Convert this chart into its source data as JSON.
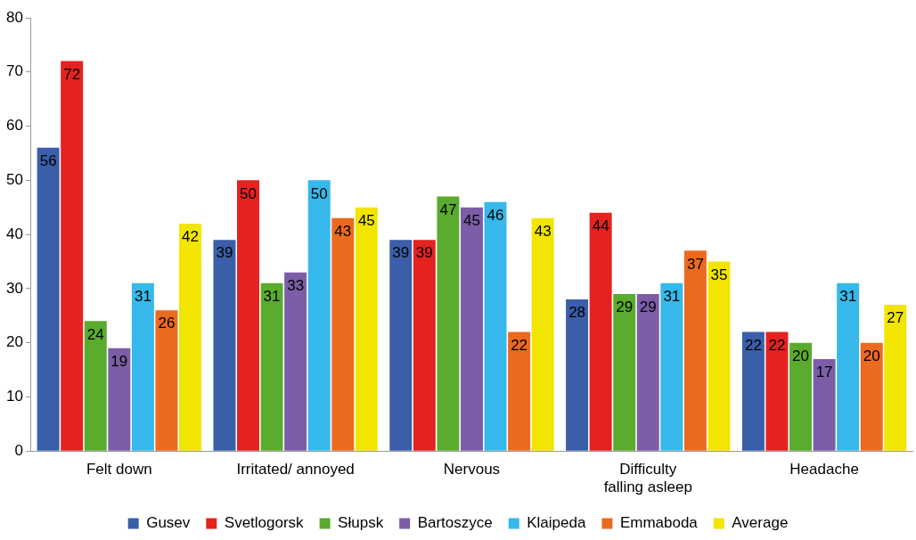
{
  "chart_data": {
    "type": "bar",
    "categories": [
      "Felt down",
      "Irritated/ annoyed",
      "Nervous",
      "Difficulty falling asleep",
      "Headache"
    ],
    "series": [
      {
        "name": "Gusev",
        "color": "#3a5ea8",
        "values": [
          56,
          39,
          39,
          28,
          22
        ]
      },
      {
        "name": "Svetlogorsk",
        "color": "#e4221f",
        "values": [
          72,
          50,
          39,
          44,
          22
        ]
      },
      {
        "name": "Słupsk",
        "color": "#5aab2e",
        "values": [
          24,
          31,
          47,
          29,
          20
        ]
      },
      {
        "name": "Bartoszyce",
        "color": "#7b5ea7",
        "values": [
          19,
          33,
          45,
          29,
          17
        ]
      },
      {
        "name": "Klaipeda",
        "color": "#36b8ea",
        "values": [
          31,
          50,
          46,
          31,
          31
        ]
      },
      {
        "name": "Emmaboda",
        "color": "#ec6a1f",
        "values": [
          26,
          43,
          22,
          37,
          20
        ]
      },
      {
        "name": "Average",
        "color": "#f2e500",
        "values": [
          42,
          45,
          43,
          35,
          27
        ]
      }
    ],
    "ylim": [
      0,
      80
    ],
    "yticks": [
      0,
      10,
      20,
      30,
      40,
      50,
      60,
      70,
      80
    ],
    "grid": false,
    "legend": "bottom",
    "data_labels": true
  }
}
